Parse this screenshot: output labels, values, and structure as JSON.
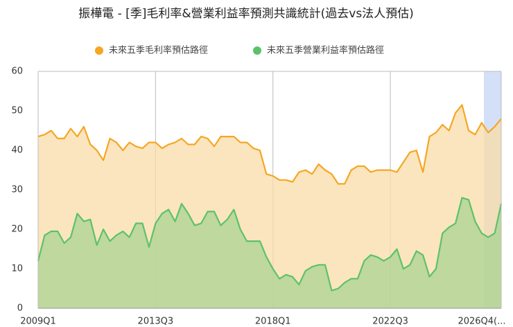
{
  "chart_data": {
    "type": "area",
    "title": "振樺電 - [季]毛利率&營業利益率預測共識統計(過去vs法人預估)",
    "categories": [
      "2009Q1",
      null,
      null,
      null,
      null,
      null,
      null,
      null,
      null,
      null,
      null,
      null,
      null,
      null,
      null,
      null,
      null,
      null,
      "2013Q3",
      null,
      null,
      null,
      null,
      null,
      null,
      null,
      null,
      null,
      null,
      null,
      null,
      null,
      null,
      null,
      null,
      null,
      "2018Q1",
      null,
      null,
      null,
      null,
      null,
      null,
      null,
      null,
      null,
      null,
      null,
      null,
      null,
      null,
      null,
      null,
      null,
      "2022Q3",
      null,
      null,
      null,
      null,
      null,
      null,
      null,
      null,
      null,
      null,
      null,
      null,
      null,
      null,
      null,
      null,
      "2026Q4(..."
    ],
    "series": [
      {
        "name": "未來五季毛利率預估路徑",
        "color": "#f5a623",
        "fill": "#f9dca8",
        "values": [
          43.5,
          44,
          45,
          43,
          43,
          45.5,
          43.5,
          46,
          41.5,
          40,
          37.5,
          43,
          42,
          40,
          42,
          41,
          40.5,
          42,
          42,
          40.5,
          41.5,
          42,
          43,
          41.5,
          41.5,
          43.5,
          43,
          41,
          43.5,
          43.5,
          43.5,
          42,
          42,
          40.5,
          40,
          34,
          33.5,
          32.5,
          32.5,
          32,
          34.5,
          35,
          34,
          36.5,
          35,
          34,
          31.5,
          31.5,
          35,
          36,
          36,
          34.5,
          35,
          35,
          35,
          34.5,
          37,
          39.5,
          40,
          34.5,
          43.5,
          44.5,
          46.5,
          45,
          49.5,
          51.5,
          45,
          44,
          47,
          44.5,
          46,
          48
        ]
      },
      {
        "name": "未來五季營業利益率預估路徑",
        "color": "#5cc26a",
        "fill": "#a9d392",
        "values": [
          12,
          18.5,
          19.5,
          19.5,
          16.5,
          18,
          24,
          22,
          22.5,
          16,
          20,
          17,
          18.5,
          19.5,
          18,
          21.5,
          21.5,
          15.5,
          21.5,
          24,
          25,
          22,
          26.5,
          24,
          21,
          21.5,
          24.5,
          24.5,
          21,
          22.5,
          25,
          20,
          17,
          17,
          17,
          13,
          10,
          7.5,
          8.5,
          8,
          6,
          9.5,
          10.5,
          11,
          11,
          4.5,
          5,
          6.5,
          7.5,
          7.5,
          12,
          13.5,
          13,
          12,
          13,
          15,
          10,
          11,
          14.5,
          13.5,
          8,
          10,
          19,
          20.5,
          21.5,
          28,
          27.5,
          22,
          19,
          18,
          19,
          26.5
        ]
      }
    ],
    "ylim": [
      0,
      60
    ],
    "yticks": [
      0,
      10,
      20,
      30,
      40,
      50,
      60
    ],
    "grid": true
  }
}
